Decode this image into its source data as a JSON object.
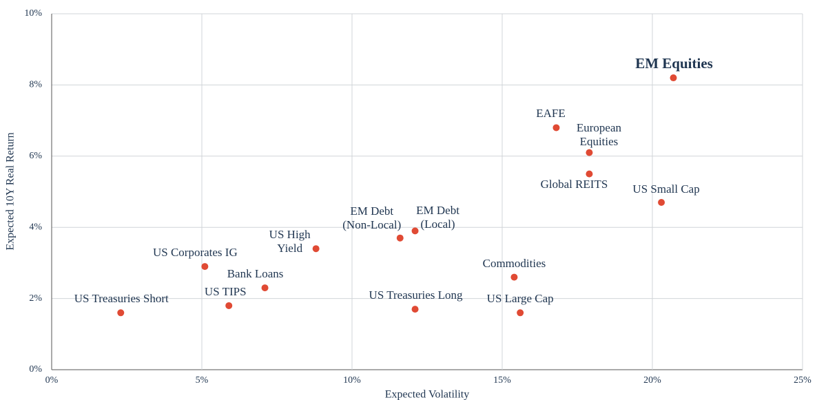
{
  "chart_data": {
    "type": "scatter",
    "xlabel": "Expected Volatility",
    "ylabel": "Expected 10Y Real Return",
    "labels": [
      "US Treasuries Short",
      "US Corporates IG",
      "US TIPS",
      "Bank Loans",
      "US High\nYield",
      "EM Debt\n(Non-Local)",
      "EM Debt\n(Local)",
      "US Treasuries Long",
      "Commodities",
      "US Large Cap",
      "EAFE",
      "European\nEquities",
      "Global REITS",
      "US Small Cap",
      "EM Equities"
    ],
    "x": [
      2.3,
      5.1,
      5.9,
      7.1,
      8.8,
      11.6,
      12.1,
      12.1,
      15.4,
      15.6,
      16.8,
      17.9,
      17.9,
      20.3,
      20.7
    ],
    "values": [
      1.6,
      2.9,
      1.8,
      2.3,
      3.4,
      3.7,
      3.9,
      1.7,
      2.6,
      1.6,
      6.8,
      6.1,
      5.5,
      4.7,
      8.2
    ],
    "color": "#e04a34",
    "xlim": [
      0,
      25
    ],
    "xticks": [
      {
        "value": 0,
        "label": "0%"
      },
      {
        "value": 5,
        "label": "5%"
      },
      {
        "value": 10,
        "label": "10%"
      },
      {
        "value": 15,
        "label": "15%"
      },
      {
        "value": 20,
        "label": "20%"
      },
      {
        "value": 25,
        "label": "25%"
      }
    ],
    "ylim": [
      0,
      10
    ],
    "yticks": [
      {
        "value": 0,
        "label": "0%"
      },
      {
        "value": 2,
        "label": "2%"
      },
      {
        "value": 4,
        "label": "4%"
      },
      {
        "value": 6,
        "label": "6%"
      },
      {
        "value": 8,
        "label": "8%"
      },
      {
        "value": 10,
        "label": "10%"
      }
    ],
    "grid": true
  }
}
